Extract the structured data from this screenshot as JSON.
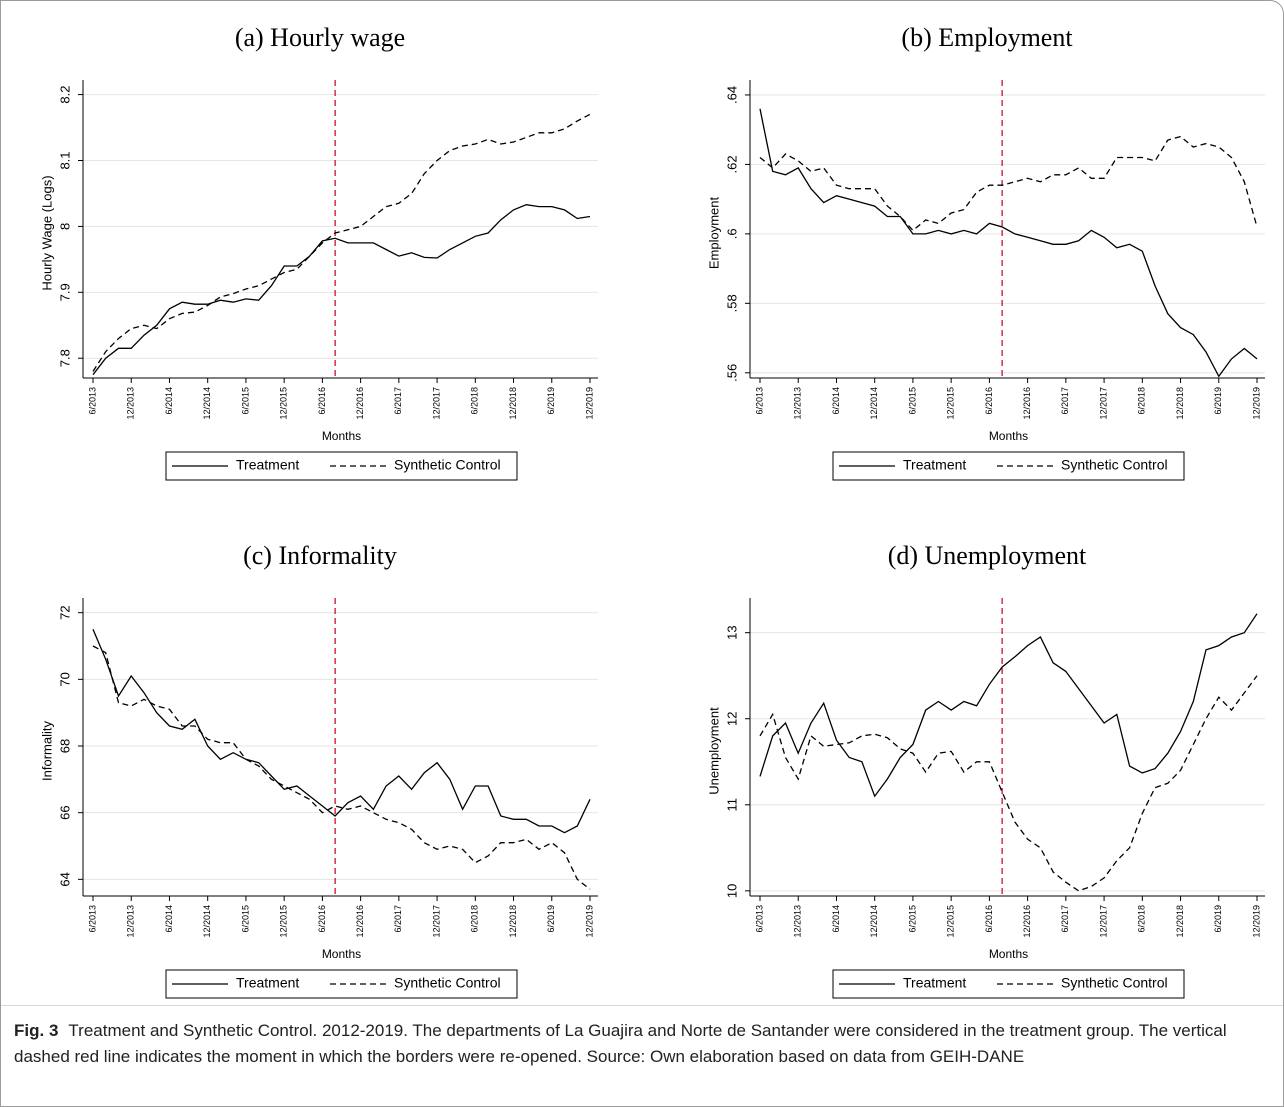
{
  "chart_data": [
    {
      "type": "line",
      "title": "(a) Hourly wage",
      "xlabel": "Months",
      "ylabel": "Hourly Wage (Logs)",
      "categories": [
        "6/2013",
        null,
        null,
        "12/2013",
        null,
        null,
        "6/2014",
        null,
        null,
        "12/2014",
        null,
        null,
        "6/2015",
        null,
        null,
        "12/2015",
        null,
        null,
        "6/2016",
        null,
        null,
        "12/2016",
        null,
        null,
        "6/2017",
        null,
        null,
        "12/2017",
        null,
        null,
        "6/2018",
        null,
        null,
        "12/2018",
        null,
        null,
        "6/2019",
        null,
        null,
        "12/2019"
      ],
      "ylim": [
        7.77,
        8.21
      ],
      "yticks": [
        7.8,
        7.9,
        8,
        8.1,
        8.2
      ],
      "grid": true,
      "legend": "bottom",
      "vline": {
        "category_index": 19,
        "color": "#c8102e"
      },
      "series": [
        {
          "name": "Treatment",
          "color": "#000000",
          "style": "solid",
          "values": [
            7.775,
            7.8,
            7.815,
            7.815,
            7.835,
            7.85,
            7.875,
            7.885,
            7.882,
            7.882,
            7.888,
            7.885,
            7.89,
            7.888,
            7.91,
            7.94,
            7.94,
            7.955,
            7.978,
            7.982,
            7.975,
            7.975,
            7.975,
            7.965,
            7.955,
            7.96,
            7.953,
            7.952,
            7.965,
            7.975,
            7.985,
            7.99,
            8.01,
            8.025,
            8.033,
            8.03,
            8.03,
            8.025,
            8.012,
            8.015
          ]
        },
        {
          "name": "Synthetic Control",
          "color": "#000000",
          "style": "dashed",
          "values": [
            7.78,
            7.81,
            7.83,
            7.845,
            7.85,
            7.845,
            7.86,
            7.868,
            7.87,
            7.88,
            7.893,
            7.898,
            7.905,
            7.91,
            7.92,
            7.93,
            7.935,
            7.955,
            7.975,
            7.99,
            7.995,
            8.0,
            8.015,
            8.03,
            8.035,
            8.05,
            8.08,
            8.1,
            8.115,
            8.122,
            8.125,
            8.132,
            8.125,
            8.128,
            8.135,
            8.142,
            8.142,
            8.148,
            8.16,
            8.17
          ]
        }
      ]
    },
    {
      "type": "line",
      "title": "(b) Employment",
      "xlabel": "Months",
      "ylabel": "Employment",
      "categories": [
        "6/2013",
        null,
        null,
        "12/2013",
        null,
        null,
        "6/2014",
        null,
        null,
        "12/2014",
        null,
        null,
        "6/2015",
        null,
        null,
        "12/2015",
        null,
        null,
        "6/2016",
        null,
        null,
        "12/2016",
        null,
        null,
        "6/2017",
        null,
        null,
        "12/2017",
        null,
        null,
        "6/2018",
        null,
        null,
        "12/2018",
        null,
        null,
        "6/2019",
        null,
        null,
        "12/2019"
      ],
      "ylim": [
        0.5585,
        0.642
      ],
      "yticks": [
        {
          "value": 0.56,
          "label": ".56"
        },
        {
          "value": 0.58,
          "label": ".58"
        },
        {
          "value": 0.6,
          "label": ".6"
        },
        {
          "value": 0.62,
          "label": ".62"
        },
        {
          "value": 0.64,
          "label": ".64"
        }
      ],
      "grid": true,
      "legend": "bottom",
      "vline": {
        "category_index": 19,
        "color": "#c8102e"
      },
      "series": [
        {
          "name": "Treatment",
          "color": "#000000",
          "style": "solid",
          "values": [
            0.636,
            0.618,
            0.617,
            0.619,
            0.613,
            0.609,
            0.611,
            0.61,
            0.609,
            0.608,
            0.605,
            0.605,
            0.6,
            0.6,
            0.601,
            0.6,
            0.601,
            0.6,
            0.603,
            0.602,
            0.6,
            0.599,
            0.598,
            0.597,
            0.597,
            0.598,
            0.601,
            0.599,
            0.596,
            0.597,
            0.595,
            0.585,
            0.577,
            0.573,
            0.571,
            0.566,
            0.559,
            0.564,
            0.567,
            0.564
          ]
        },
        {
          "name": "Synthetic Control",
          "color": "#000000",
          "style": "dashed",
          "values": [
            0.622,
            0.619,
            0.623,
            0.621,
            0.618,
            0.619,
            0.614,
            0.613,
            0.613,
            0.613,
            0.608,
            0.605,
            0.601,
            0.604,
            0.603,
            0.606,
            0.607,
            0.612,
            0.614,
            0.614,
            0.615,
            0.616,
            0.615,
            0.617,
            0.617,
            0.619,
            0.616,
            0.616,
            0.622,
            0.622,
            0.622,
            0.621,
            0.627,
            0.628,
            0.625,
            0.626,
            0.625,
            0.622,
            0.615,
            0.602
          ]
        }
      ]
    },
    {
      "type": "line",
      "title": "(c) Informality",
      "xlabel": "Months",
      "ylabel": "Informality",
      "categories": [
        "6/2013",
        null,
        null,
        "12/2013",
        null,
        null,
        "6/2014",
        null,
        null,
        "12/2014",
        null,
        null,
        "6/2015",
        null,
        null,
        "12/2015",
        null,
        null,
        "6/2016",
        null,
        null,
        "12/2016",
        null,
        null,
        "6/2017",
        null,
        null,
        "12/2017",
        null,
        null,
        "6/2018",
        null,
        null,
        "12/2018",
        null,
        null,
        "6/2019",
        null,
        null,
        "12/2019"
      ],
      "ylim": [
        63.5,
        72.2
      ],
      "yticks": [
        64,
        66,
        68,
        70,
        72
      ],
      "grid": true,
      "legend": "bottom",
      "vline": {
        "category_index": 19,
        "color": "#c8102e"
      },
      "series": [
        {
          "name": "Treatment",
          "color": "#000000",
          "style": "solid",
          "values": [
            71.5,
            70.6,
            69.5,
            70.1,
            69.6,
            69.0,
            68.6,
            68.5,
            68.8,
            68.0,
            67.6,
            67.8,
            67.6,
            67.5,
            67.1,
            66.7,
            66.8,
            66.5,
            66.2,
            65.9,
            66.3,
            66.5,
            66.1,
            66.8,
            67.1,
            66.7,
            67.2,
            67.5,
            67.0,
            66.1,
            66.8,
            66.8,
            65.9,
            65.8,
            65.8,
            65.6,
            65.6,
            65.4,
            65.6,
            66.4
          ]
        },
        {
          "name": "Synthetic Control",
          "color": "#000000",
          "style": "dashed",
          "values": [
            71.0,
            70.8,
            69.3,
            69.2,
            69.4,
            69.2,
            69.1,
            68.6,
            68.6,
            68.2,
            68.1,
            68.1,
            67.6,
            67.4,
            67.0,
            66.8,
            66.6,
            66.4,
            66.0,
            66.2,
            66.1,
            66.2,
            66.0,
            65.8,
            65.7,
            65.5,
            65.1,
            64.9,
            65.0,
            64.9,
            64.5,
            64.7,
            65.1,
            65.1,
            65.2,
            64.9,
            65.1,
            64.8,
            64.0,
            63.7
          ]
        }
      ]
    },
    {
      "type": "line",
      "title": "(d) Unemployment",
      "xlabel": "Months",
      "ylabel": "Unemployment",
      "categories": [
        "6/2013",
        null,
        null,
        "12/2013",
        null,
        null,
        "6/2014",
        null,
        null,
        "12/2014",
        null,
        null,
        "6/2015",
        null,
        null,
        "12/2015",
        null,
        null,
        "6/2016",
        null,
        null,
        "12/2016",
        null,
        null,
        "6/2017",
        null,
        null,
        "12/2017",
        null,
        null,
        "6/2018",
        null,
        null,
        "12/2018",
        null,
        null,
        "6/2019",
        null,
        null,
        "12/2019"
      ],
      "ylim": [
        9.94,
        13.31
      ],
      "yticks": [
        10,
        11,
        12,
        13
      ],
      "grid": true,
      "legend": "bottom",
      "vline": {
        "category_index": 19,
        "color": "#c8102e"
      },
      "series": [
        {
          "name": "Treatment",
          "color": "#000000",
          "style": "solid",
          "values": [
            11.33,
            11.8,
            11.95,
            11.6,
            11.95,
            12.18,
            11.75,
            11.55,
            11.5,
            11.1,
            11.3,
            11.55,
            11.7,
            12.1,
            12.2,
            12.1,
            12.2,
            12.15,
            12.4,
            12.6,
            12.72,
            12.85,
            12.95,
            12.65,
            12.55,
            12.35,
            12.15,
            11.95,
            12.05,
            11.45,
            11.37,
            11.42,
            11.6,
            11.85,
            12.2,
            12.8,
            12.85,
            12.95,
            13.0,
            13.22
          ]
        },
        {
          "name": "Synthetic Control",
          "color": "#000000",
          "style": "dashed",
          "values": [
            11.8,
            12.05,
            11.55,
            11.3,
            11.8,
            11.68,
            11.7,
            11.72,
            11.8,
            11.82,
            11.78,
            11.65,
            11.6,
            11.38,
            11.6,
            11.62,
            11.38,
            11.5,
            11.5,
            11.15,
            10.8,
            10.6,
            10.5,
            10.22,
            10.1,
            10.0,
            10.05,
            10.15,
            10.35,
            10.5,
            10.9,
            11.2,
            11.25,
            11.4,
            11.7,
            12.0,
            12.25,
            12.1,
            12.3,
            12.5
          ]
        }
      ]
    }
  ],
  "caption": {
    "label": "Fig. 3",
    "text": "Treatment and Synthetic Control. 2012-2019. The departments of La Guajira and Norte de Santander were considered in the treatment group. The vertical dashed red line indicates the moment in which the borders were re-opened. Source: Own elaboration based on data from GEIH-DANE"
  }
}
